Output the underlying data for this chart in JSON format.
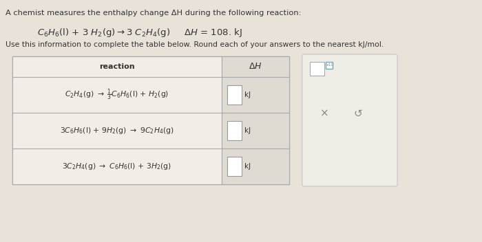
{
  "background_color": "#e8e2d8",
  "title_line1": "A chemist measures the enthalpy change ΔH during the following reaction:",
  "info_line": "Use this information to complete the table below. Round each of your answers to the nearest kJ/mol.",
  "table_header_reaction": "reaction",
  "table_header_dH": "ΔH",
  "kJ_label": "kJ",
  "table_bg": "#f2ede6",
  "table_border": "#aaaaaa",
  "dH_col_bg": "#e0dbd2",
  "text_color": "#333333",
  "right_panel_bg": "#f0ece6",
  "right_panel_border": "#cccccc",
  "white": "#ffffff",
  "blue_box": "#66aacc",
  "icon_color": "#888888"
}
